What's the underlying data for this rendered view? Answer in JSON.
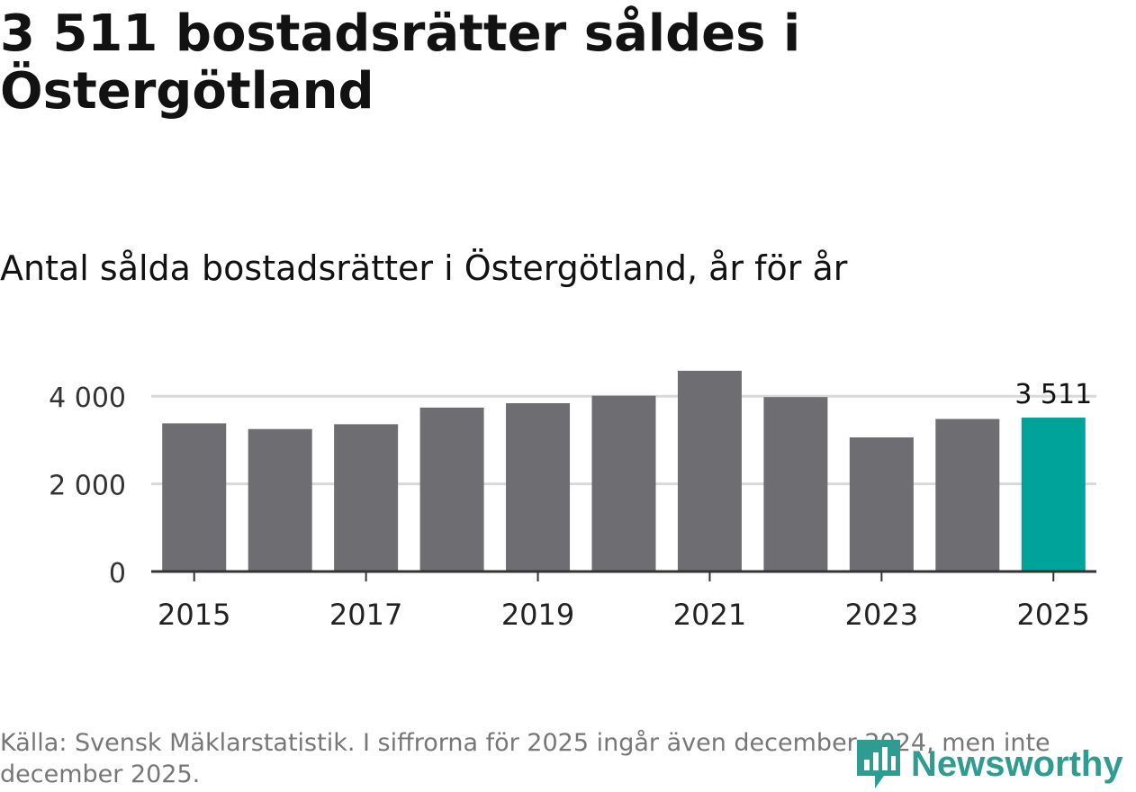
{
  "headline": "3 511 bostadsrätter såldes i Östergötland",
  "subtitle": "Antal sålda bostadsrätter i Östergötland, år för år",
  "footnote": "Källa: Svensk Mäklarstatistik. I siffrorna för 2025 ingår även december 2024, men inte december 2025.",
  "brand": {
    "name": "Newsworthy",
    "color": "#2f9c92",
    "icon": "bar-chart-pin-icon"
  },
  "colors": {
    "bar": "#6e6d72",
    "highlight": "#00a39a",
    "grid": "#d9d9d9",
    "axis": "#333333"
  },
  "chart_data": {
    "type": "bar",
    "title": "Antal sålda bostadsrätter i Östergötland, år för år",
    "categories": [
      "2015",
      "2016",
      "2017",
      "2018",
      "2019",
      "2020",
      "2021",
      "2022",
      "2023",
      "2024",
      "2025"
    ],
    "values": [
      3380,
      3250,
      3360,
      3740,
      3840,
      4010,
      4580,
      3980,
      3060,
      3480,
      3511
    ],
    "highlight_index": 10,
    "highlight_label": "3 511",
    "x_tick_labels": [
      "2015",
      "2017",
      "2019",
      "2021",
      "2023",
      "2025"
    ],
    "y_ticks": [
      0,
      2000,
      4000
    ],
    "y_tick_labels": [
      "0",
      "2 000",
      "4 000"
    ],
    "ylim": [
      0,
      4800
    ],
    "xlabel": "",
    "ylabel": "",
    "grid": true
  }
}
